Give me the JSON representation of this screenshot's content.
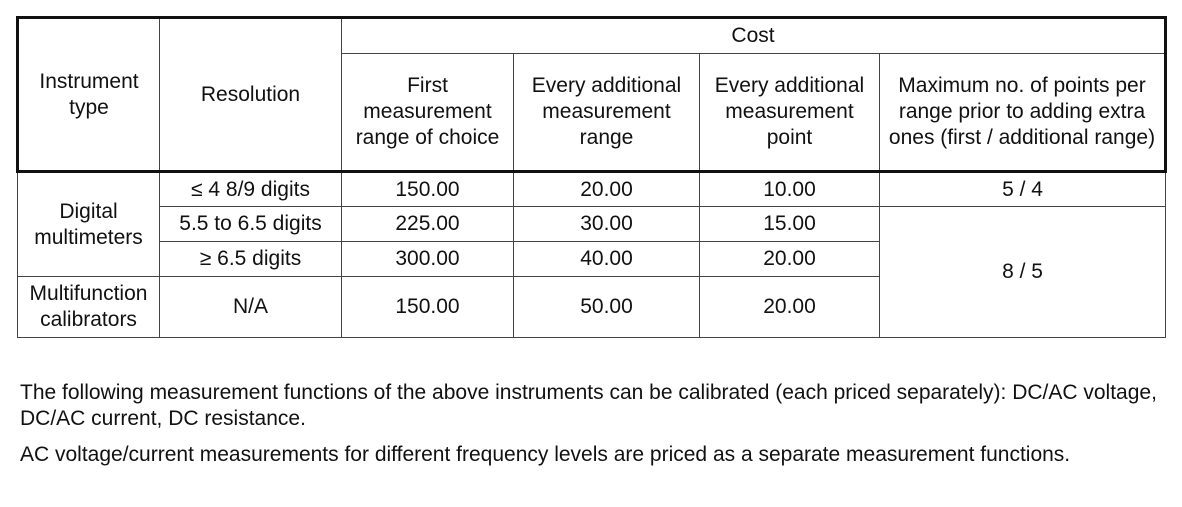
{
  "table": {
    "header": {
      "instrument_type": "Instrument type",
      "resolution": "Resolution",
      "cost": "Cost",
      "first_range": "First measurement range of choice",
      "additional_range": "Every additional measurement range",
      "additional_point": "Every additional measurement point",
      "max_points": "Maximum no. of points per range prior to adding extra ones (first / additional range)"
    },
    "groups": {
      "digital_multimeters": "Digital multimeters",
      "multifunction_calibrators": "Multifunction calibrators"
    },
    "rows": [
      {
        "resolution": "≤ 4 8/9 digits",
        "first": "150.00",
        "additional_range": "20.00",
        "additional_point": "10.00",
        "max_points": "5 / 4"
      },
      {
        "resolution": "5.5 to 6.5 digits",
        "first": "225.00",
        "additional_range": "30.00",
        "additional_point": "15.00"
      },
      {
        "resolution": "≥ 6.5 digits",
        "first": "300.00",
        "additional_range": "40.00",
        "additional_point": "20.00"
      },
      {
        "resolution": "N/A",
        "first": "150.00",
        "additional_range": "50.00",
        "additional_point": "20.00"
      }
    ],
    "max_points_shared": "8 / 5"
  },
  "notes": {
    "paragraph_1": "The following measurement functions of the above instruments can be calibrated (each priced separately): DC/AC voltage, DC/AC current, DC resistance.",
    "paragraph_2": "AC voltage/current measurements for different frequency levels are priced as a separate measurement functions."
  }
}
